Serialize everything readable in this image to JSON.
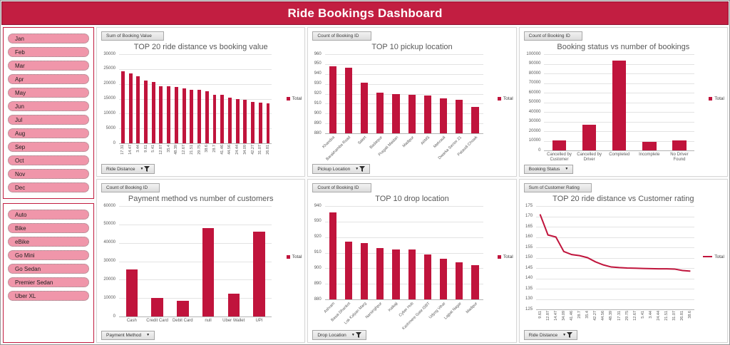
{
  "header": {
    "title": "Ride Bookings Dashboard"
  },
  "colors": {
    "header_bg": "#C21E41",
    "header_border": "#8E1030",
    "bar": "#C0143C",
    "slicer_button_bg": "#F096AA",
    "slicer_border": "#C21E41",
    "title_text": "#595959"
  },
  "slicers": {
    "months": {
      "items": [
        "Jan",
        "Feb",
        "Mar",
        "Apr",
        "May",
        "Jun",
        "Jul",
        "Aug",
        "Sep",
        "Oct",
        "Nov",
        "Dec"
      ]
    },
    "vehicle_types": {
      "items": [
        "Auto",
        "Bike",
        "eBike",
        "Go Mini",
        "Go Sedan",
        "Premier Sedan",
        "Uber XL"
      ]
    }
  },
  "chart_data": [
    {
      "type": "bar",
      "title": "TOP 20 ride distance vs booking value",
      "field_button": "Sum of Booking Value",
      "filter_button": "Ride Distance",
      "has_funnel": true,
      "legend": "Total",
      "categories": [
        "17.31",
        "14.47",
        "3.44",
        "9.61",
        "5.41",
        "12.87",
        "35.4",
        "48.39",
        "12.67",
        "21.51",
        "29.75",
        "38.6",
        "28.7",
        "41.46",
        "44.56",
        "24.44",
        "34.09",
        "42.27",
        "31.07",
        "26.81"
      ],
      "values": [
        24300,
        23600,
        22500,
        21200,
        20600,
        19300,
        19200,
        18900,
        18400,
        18100,
        17900,
        17600,
        16400,
        16400,
        15400,
        14900,
        14600,
        14000,
        13700,
        13400
      ],
      "ylim": [
        0,
        30000
      ],
      "ystep": 5000,
      "label_rotation": 90,
      "xlabel": "Ride Distance",
      "ylabel": "Sum of Booking Value"
    },
    {
      "type": "bar",
      "title": "TOP 10 pickup location",
      "field_button": "Count of Booking ID",
      "filter_button": "Pickup Location",
      "has_funnel": true,
      "legend": "Total",
      "categories": [
        "Khandsa",
        "Barakhamba Road",
        "Saket",
        "Badarpur",
        "Pragati Maidan",
        "Madipur",
        "AIIMS",
        "Mehrauli",
        "Dwarka Sector 21",
        "Pataudi Chowk"
      ],
      "values": [
        948,
        946,
        931,
        921,
        920,
        919,
        918,
        915,
        914,
        907
      ],
      "ylim": [
        880,
        960
      ],
      "ystep": 10,
      "label_rotation": 45,
      "xlabel": "Pickup Location",
      "ylabel": "Count of Booking ID"
    },
    {
      "type": "bar",
      "title": "Booking status vs number of bookings",
      "field_button": "Count of Booking ID",
      "filter_button": "Booking Status",
      "has_funnel": false,
      "legend": "Total",
      "categories": [
        "Cancelled by Customer",
        "Cancelled by Driver",
        "Completed",
        "Incomplete",
        "No Driver Found"
      ],
      "values": [
        10500,
        27000,
        93000,
        9000,
        10500
      ],
      "ylim": [
        0,
        100000
      ],
      "ystep": 10000,
      "label_rotation": 0,
      "xlabel": "Booking Status",
      "ylabel": "Count of Booking ID"
    },
    {
      "type": "bar",
      "title": "Payment method vs number of customers",
      "field_button": "Count of Booking ID",
      "filter_button": "Payment Method",
      "has_funnel": false,
      "legend": "Total",
      "categories": [
        "Cash",
        "Credit Card",
        "Debit Card",
        "null",
        "Uber Wallet",
        "UPI"
      ],
      "values": [
        25500,
        10200,
        8500,
        48000,
        12300,
        46000
      ],
      "ylim": [
        0,
        60000
      ],
      "ystep": 10000,
      "label_rotation": 0,
      "xlabel": "Payment Method",
      "ylabel": "Count of Booking ID"
    },
    {
      "type": "bar",
      "title": "TOP 10 drop location",
      "field_button": "Count of Booking ID",
      "filter_button": "Drop Location",
      "has_funnel": true,
      "legend": "Total",
      "categories": [
        "Ashram",
        "Basai Dhankot",
        "Lok Kalyan Marg",
        "Narsinghpur",
        "Kalkaji",
        "Cyber Hub",
        "Kashmere Gate ISBT",
        "Udyog Vihar",
        "Lajpat Nagar",
        "Madipur"
      ],
      "values": [
        936,
        917,
        916,
        913,
        912,
        912,
        909,
        906,
        904,
        902
      ],
      "ylim": [
        880,
        940
      ],
      "ystep": 10,
      "label_rotation": 45,
      "xlabel": "Drop Location",
      "ylabel": "Count of Booking ID"
    },
    {
      "type": "line",
      "title": "TOP 20 ride distance vs Customer rating",
      "field_button": "Sum of Customer Rating",
      "filter_button": "Ride Distance",
      "has_funnel": true,
      "legend": "Total",
      "categories": [
        "9.61",
        "12.87",
        "14.47",
        "34.09",
        "41.46",
        "28.7",
        "35.4",
        "42.27",
        "44.56",
        "48.39",
        "17.31",
        "29.75",
        "12.67",
        "5.41",
        "3.44",
        "24.44",
        "21.51",
        "31.07",
        "26.81",
        "38.6"
      ],
      "values": [
        171,
        161,
        160,
        153,
        151.5,
        151,
        150,
        148,
        146.5,
        145.5,
        145.2,
        145,
        144.9,
        144.8,
        144.7,
        144.6,
        144.6,
        144.5,
        143.8,
        143.5
      ],
      "ylim": [
        125,
        175
      ],
      "ystep": 5,
      "label_rotation": 90,
      "xlabel": "Ride Distance",
      "ylabel": "Sum of Customer Rating"
    }
  ]
}
